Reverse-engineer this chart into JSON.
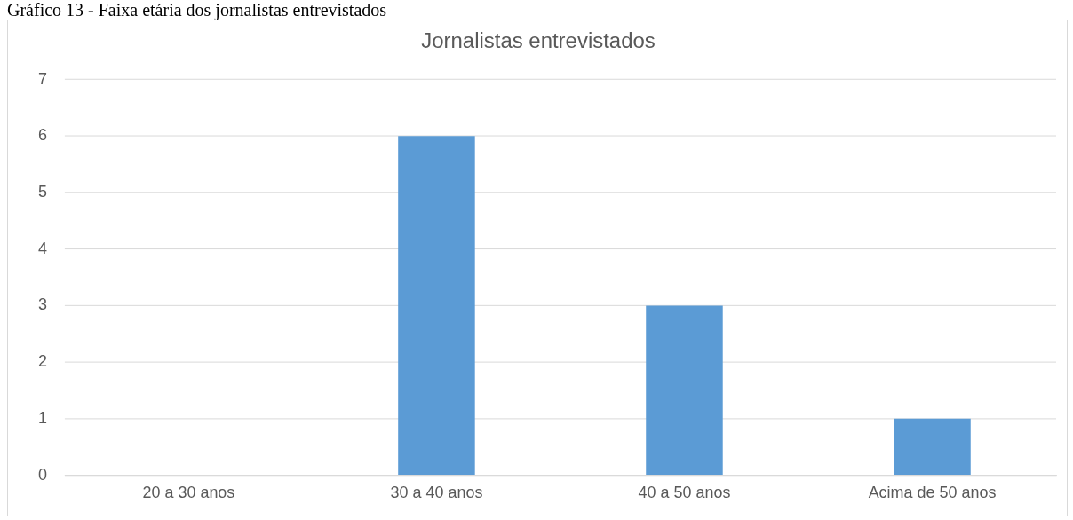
{
  "chart_data": {
    "type": "bar",
    "title": "Jornalistas entrevistados",
    "annotations": [
      "Gráfico 13 - Faixa etária dos jornalistas entrevistados"
    ],
    "categories": [
      "20 a 30 anos",
      "30 a 40 anos",
      "40 a 50 anos",
      "Acima de 50 anos"
    ],
    "values": [
      0,
      6,
      3,
      1
    ],
    "color": "#5b9bd5",
    "ylim": [
      0,
      7
    ],
    "yticks": [
      0,
      1,
      2,
      3,
      4,
      5,
      6,
      7
    ],
    "grid": "y",
    "legend": false
  }
}
